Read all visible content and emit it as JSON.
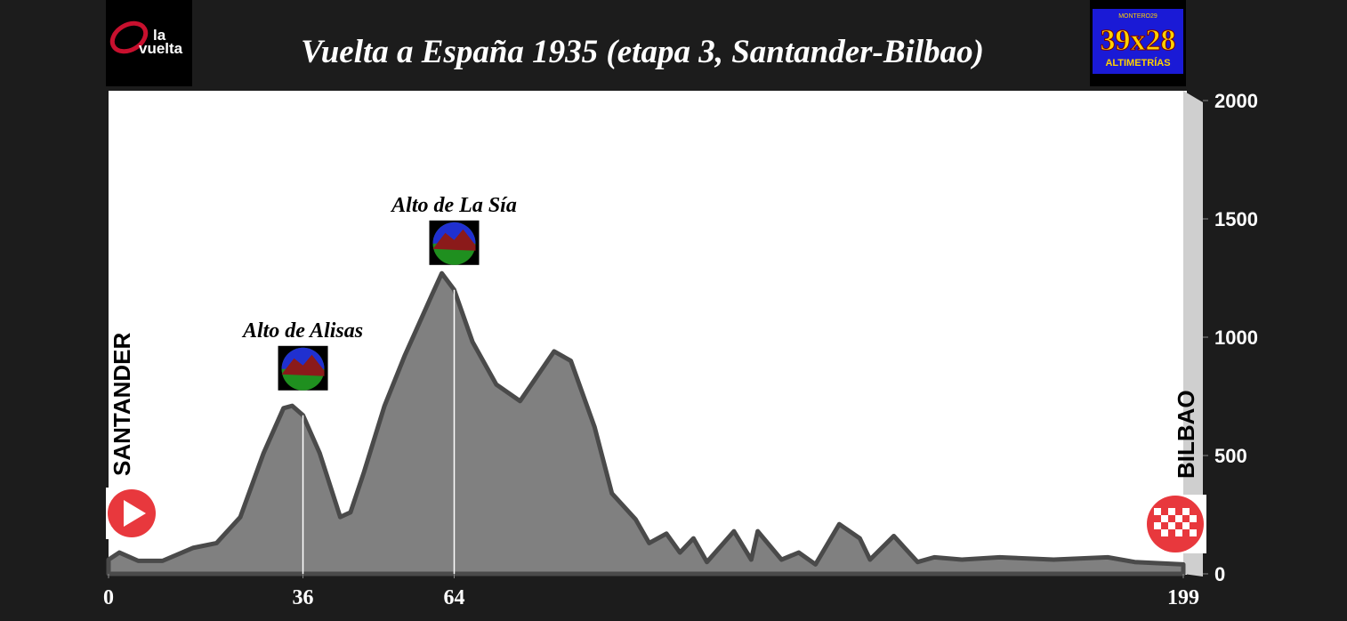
{
  "branding": {
    "left_top": "la",
    "left_bottom": "vuelta",
    "right_small": "MONTERO29",
    "right_big": "39x28",
    "right_sub": "ALTIMETRÍAS"
  },
  "chart_data": {
    "type": "area",
    "title": "Vuelta a España 1935 (etapa 3, Santander-Bilbao)",
    "start_label": "SANTANDER",
    "finish_label": "BILBAO",
    "x": [
      0,
      2,
      5.5,
      10,
      15.7,
      20,
      24.4,
      28.7,
      32.4,
      34,
      36,
      39.1,
      42.9,
      44.8,
      47.3,
      51.1,
      54.8,
      59.9,
      61.7,
      64,
      67.4,
      71.8,
      76.2,
      82.5,
      85.6,
      90,
      93.2,
      97.6,
      100.1,
      103.3,
      105.8,
      108.3,
      110.8,
      115.8,
      119,
      120.2,
      124.6,
      127.8,
      130.9,
      135.3,
      139.1,
      141,
      145.4,
      149.8,
      152.9,
      158,
      165,
      175,
      185,
      190,
      199
    ],
    "values": [
      60,
      90,
      55,
      55,
      110,
      130,
      240,
      510,
      700,
      710,
      670,
      510,
      240,
      260,
      430,
      710,
      920,
      1180,
      1270,
      1200,
      980,
      800,
      730,
      940,
      900,
      620,
      340,
      230,
      130,
      170,
      90,
      150,
      50,
      180,
      60,
      180,
      60,
      90,
      40,
      210,
      150,
      60,
      160,
      50,
      70,
      60,
      70,
      60,
      70,
      50,
      40
    ],
    "color": "#808080",
    "xlim": [
      0,
      199
    ],
    "xticks": [
      0,
      36,
      64,
      199
    ],
    "ylim": [
      0,
      2000
    ],
    "yticks": [
      0,
      500,
      1000,
      1500,
      2000
    ],
    "annotations": [
      {
        "x": 36,
        "text": "Alto de Alisas"
      },
      {
        "x": 64,
        "text": "Alto de La Sía"
      }
    ]
  }
}
